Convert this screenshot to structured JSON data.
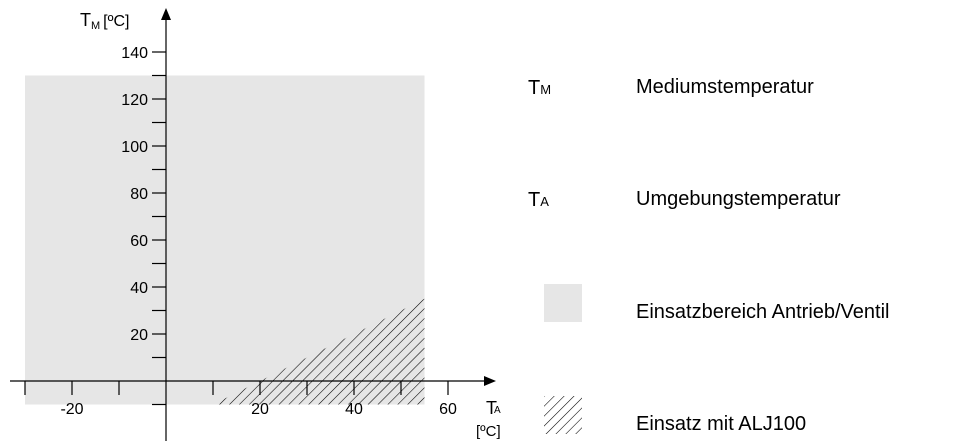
{
  "chart_data": {
    "type": "area",
    "x_label_main": "T",
    "x_label_sub": "A",
    "x_unit": "[ºC]",
    "y_label_main": "T",
    "y_label_sub": "M",
    "y_unit": "[ºC]",
    "xlim": [
      -33,
      60
    ],
    "ylim": [
      -10,
      150
    ],
    "x_ticks": [
      -20,
      20,
      40,
      60
    ],
    "y_ticks": [
      20,
      40,
      60,
      80,
      100,
      120,
      140
    ],
    "regions": [
      {
        "name": "Einsatzbereich Antrieb/Ventil",
        "x_range": [
          -30,
          55
        ],
        "y_range": [
          -10,
          130
        ]
      },
      {
        "name": "Einsatz mit ALJ100",
        "polygon_x": [
          10,
          55,
          55
        ],
        "polygon_y": [
          -10,
          -10,
          35
        ]
      }
    ]
  },
  "colors": {
    "region_fill": "#e6e6e6",
    "axis": "#000000",
    "hatch": "#000000"
  },
  "legend": [
    {
      "symbol": "T",
      "sub": "M",
      "label": "Mediumstemperatur"
    },
    {
      "symbol": "T",
      "sub": "A",
      "label": "Umgebungstemperatur"
    },
    {
      "swatch": "solid-gray",
      "label": "Einsatzbereich Antrieb/Ventil"
    },
    {
      "swatch": "hatched",
      "label": "Einsatz mit ALJ100"
    }
  ]
}
